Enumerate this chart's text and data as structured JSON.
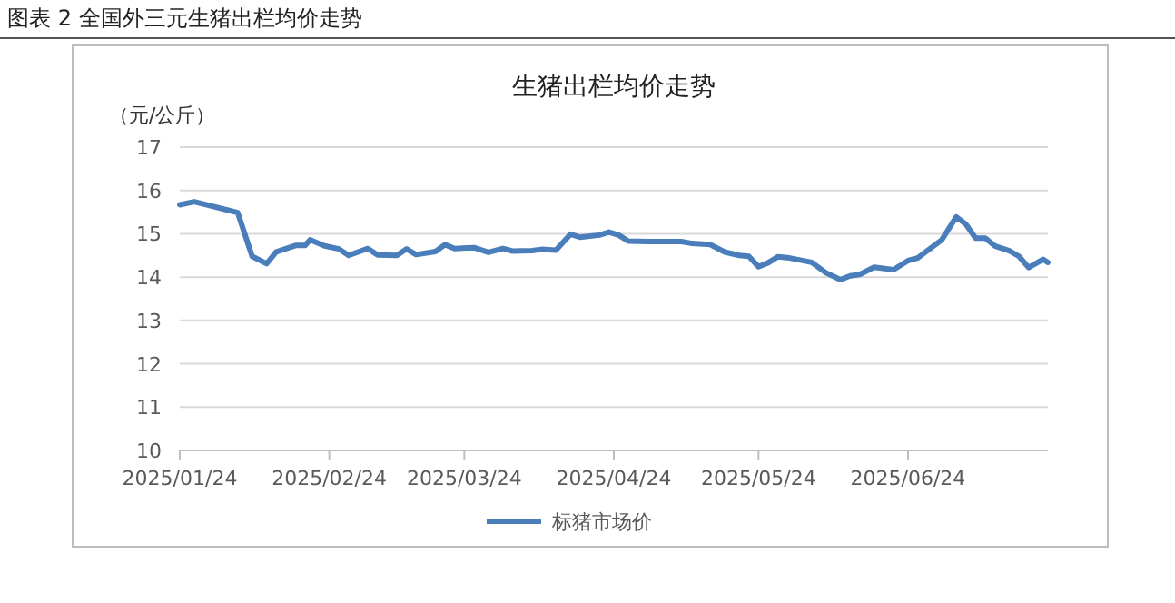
{
  "chart_data": {
    "type": "line",
    "title": "生猪出栏均价走势",
    "ylabel": "（元/公斤）",
    "annotations": [
      "图表 2  全国外三元生猪出栏均价走势"
    ],
    "xlim": [
      "2025-01-24",
      "2025-07-23"
    ],
    "xticks": [
      {
        "value": "2025-01-24",
        "label": "2025/01/24"
      },
      {
        "value": "2025-02-24",
        "label": "2025/02/24"
      },
      {
        "value": "2025-03-24",
        "label": "2025/03/24"
      },
      {
        "value": "2025-04-24",
        "label": "2025/04/24"
      },
      {
        "value": "2025-05-24",
        "label": "2025/05/24"
      },
      {
        "value": "2025-06-24",
        "label": "2025/06/24"
      }
    ],
    "ylim": [
      10,
      17
    ],
    "yticks": [
      10,
      11,
      12,
      13,
      14,
      15,
      16,
      17
    ],
    "grid": "y",
    "legend": "bottom",
    "line_style": "solid",
    "marker": "none",
    "x": [
      "2025-01-24",
      "2025-01-27",
      "2025-02-05",
      "2025-02-08",
      "2025-02-11",
      "2025-02-13",
      "2025-02-17",
      "2025-02-19",
      "2025-02-20",
      "2025-02-23",
      "2025-02-26",
      "2025-02-28",
      "2025-03-04",
      "2025-03-06",
      "2025-03-10",
      "2025-03-12",
      "2025-03-14",
      "2025-03-18",
      "2025-03-20",
      "2025-03-22",
      "2025-03-26",
      "2025-03-29",
      "2025-04-01",
      "2025-04-03",
      "2025-04-07",
      "2025-04-09",
      "2025-04-12",
      "2025-04-15",
      "2025-04-17",
      "2025-04-21",
      "2025-04-23",
      "2025-04-25",
      "2025-04-27",
      "2025-05-01",
      "2025-05-08",
      "2025-05-10",
      "2025-05-14",
      "2025-05-17",
      "2025-05-20",
      "2025-05-22",
      "2025-05-24",
      "2025-05-26",
      "2025-05-28",
      "2025-05-30",
      "2025-06-04",
      "2025-06-07",
      "2025-06-10",
      "2025-06-12",
      "2025-06-14",
      "2025-06-17",
      "2025-06-21",
      "2025-06-24",
      "2025-06-26",
      "2025-07-01",
      "2025-07-04",
      "2025-07-06",
      "2025-07-08",
      "2025-07-10",
      "2025-07-12",
      "2025-07-15",
      "2025-07-17",
      "2025-07-19",
      "2025-07-22",
      "2025-07-23"
    ],
    "series": [
      {
        "name": "标猪市场价",
        "color": "#4a7ebb",
        "values": [
          15.67,
          15.74,
          15.49,
          14.48,
          14.31,
          14.58,
          14.73,
          14.73,
          14.86,
          14.72,
          14.65,
          14.5,
          14.66,
          14.51,
          14.5,
          14.65,
          14.52,
          14.59,
          14.75,
          14.66,
          14.68,
          14.57,
          14.66,
          14.6,
          14.61,
          14.64,
          14.62,
          14.99,
          14.92,
          14.97,
          15.04,
          14.97,
          14.83,
          14.82,
          14.82,
          14.78,
          14.75,
          14.58,
          14.5,
          14.48,
          14.24,
          14.33,
          14.47,
          14.45,
          14.34,
          14.1,
          13.94,
          14.03,
          14.06,
          14.23,
          14.17,
          14.38,
          14.44,
          14.86,
          15.39,
          15.22,
          14.9,
          14.9,
          14.72,
          14.61,
          14.48,
          14.22,
          14.41,
          14.34
        ]
      }
    ]
  }
}
